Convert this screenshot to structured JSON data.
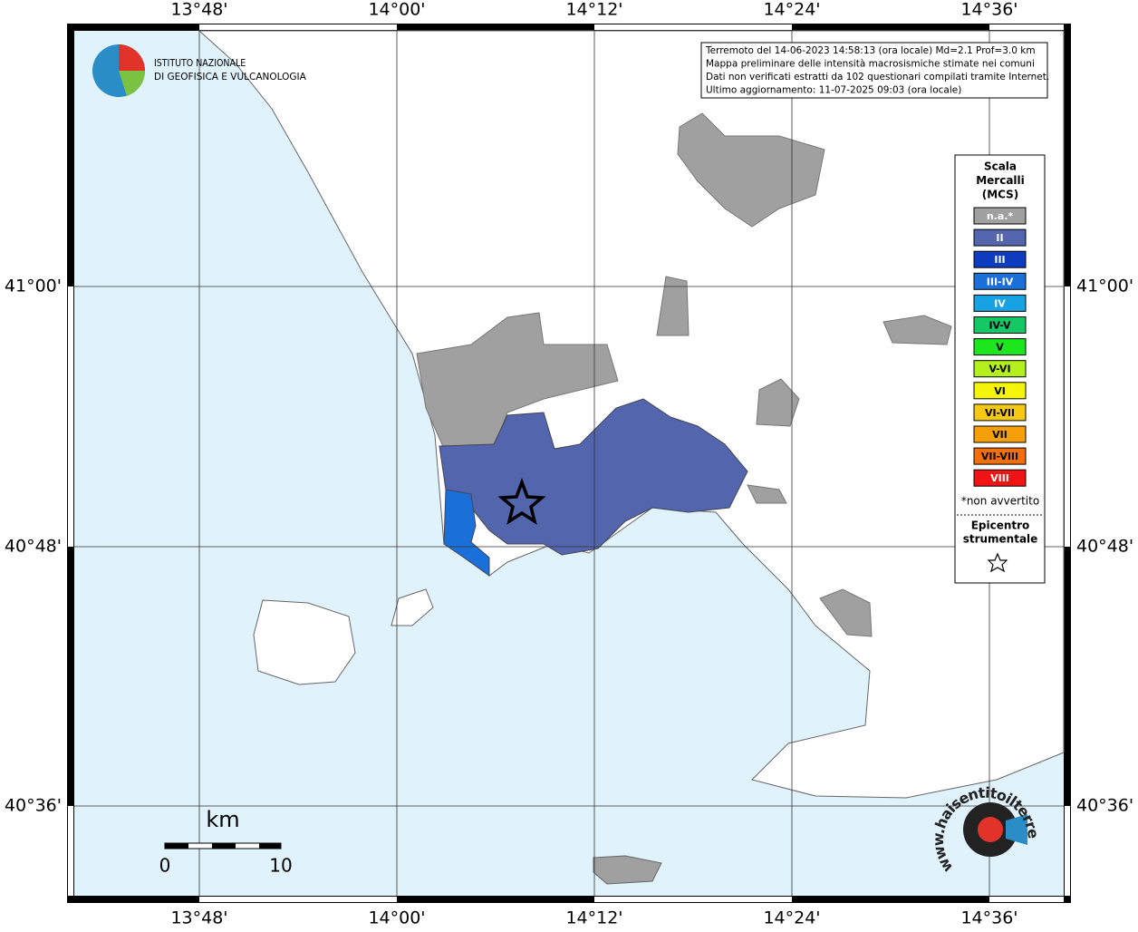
{
  "header": {
    "logo_lines": [
      "ISTITUTO NAZIONALE",
      "DI GEOFISICA E VULCANOLOGIA"
    ]
  },
  "info_box": {
    "lines": [
      "Terremoto del 14-06-2023 14:58:13 (ora locale) Md=2.1 Prof=3.0 km",
      "Mappa preliminare delle intensità macrosismiche stimate nei comuni",
      "Dati non verificati estratti da 102 questionari compilati tramite Internet.",
      "Ultimo aggiornamento: 11-07-2025 09:03 (ora locale)"
    ]
  },
  "map": {
    "lon_labels": [
      "13°48'",
      "14°00'",
      "14°12'",
      "14°24'",
      "14°36'"
    ],
    "lat_labels": [
      "41°00'",
      "40°48'",
      "40°36'"
    ]
  },
  "legend": {
    "title_lines": [
      "Scala",
      "Mercalli",
      "(MCS)"
    ],
    "items": [
      {
        "label": "n.a.*",
        "color": "#a0a0a0",
        "text_color": "#ffffff"
      },
      {
        "label": "II",
        "color": "#5265ad",
        "text_color": "#ffffff"
      },
      {
        "label": "III",
        "color": "#0d3cbf",
        "text_color": "#ffffff"
      },
      {
        "label": "III-IV",
        "color": "#1a6fd8",
        "text_color": "#ffffff"
      },
      {
        "label": "IV",
        "color": "#17a3e3",
        "text_color": "#ffffff"
      },
      {
        "label": "IV-V",
        "color": "#14c864",
        "text_color": "#000000"
      },
      {
        "label": "V",
        "color": "#1ee61e",
        "text_color": "#000000"
      },
      {
        "label": "V-VI",
        "color": "#b4f01e",
        "text_color": "#000000"
      },
      {
        "label": "VI",
        "color": "#f5f50a",
        "text_color": "#000000"
      },
      {
        "label": "VI-VII",
        "color": "#f5c814",
        "text_color": "#000000"
      },
      {
        "label": "VII",
        "color": "#f5a00a",
        "text_color": "#000000"
      },
      {
        "label": "VII-VIII",
        "color": "#f56e0a",
        "text_color": "#000000"
      },
      {
        "label": "VIII",
        "color": "#f01414",
        "text_color": "#ffffff"
      }
    ],
    "note": "*non avvertito",
    "epicenter_lines": [
      "Epicentro",
      "strumentale"
    ]
  },
  "scale_bar": {
    "unit": "km",
    "start": "0",
    "end": "10"
  },
  "watermark": "www.haisentitoilterremoto.it"
}
